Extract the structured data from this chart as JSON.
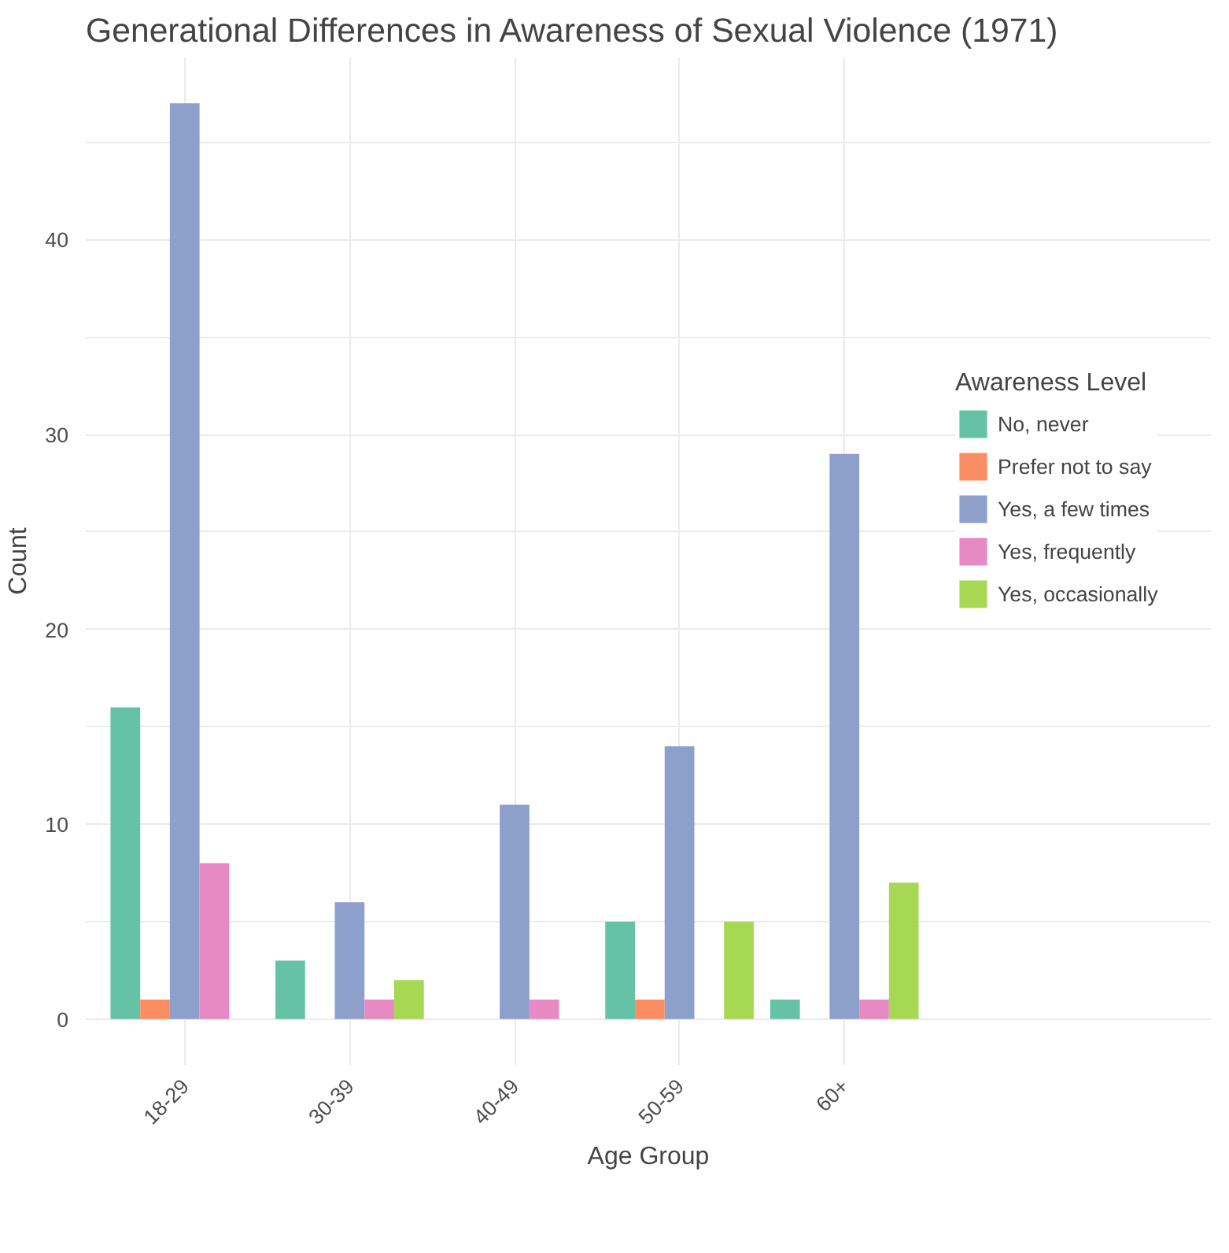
{
  "chart_data": {
    "type": "bar",
    "title": "Generational Differences in Awareness of Sexual Violence (1971)",
    "xlabel": "Age Group",
    "ylabel": "Count",
    "legend_title": "Awareness Level",
    "categories": [
      "18-29",
      "30-39",
      "40-49",
      "50-59",
      "60+"
    ],
    "series": [
      {
        "name": "No, never",
        "color": "#66c2a5",
        "values": [
          16,
          3,
          null,
          5,
          1
        ]
      },
      {
        "name": "Prefer not to say",
        "color": "#fc8d62",
        "values": [
          1,
          null,
          null,
          1,
          null
        ]
      },
      {
        "name": "Yes, a few times",
        "color": "#8da0cb",
        "values": [
          47,
          6,
          11,
          14,
          29
        ]
      },
      {
        "name": "Yes, frequently",
        "color": "#e78ac3",
        "values": [
          8,
          1,
          1,
          null,
          1
        ]
      },
      {
        "name": "Yes, occasionally",
        "color": "#a6d854",
        "values": [
          null,
          2,
          null,
          5,
          7
        ]
      }
    ],
    "ylim": [
      -2.35,
      49.35
    ],
    "yticks": [
      0,
      {
        "value": 5,
        "label": null
      },
      10,
      {
        "value": 15,
        "label": null
      },
      20,
      {
        "value": 25,
        "label": null
      },
      30,
      {
        "value": 35,
        "label": null
      },
      40,
      {
        "value": 45,
        "label": null
      }
    ],
    "grid": true,
    "legend": "right"
  }
}
